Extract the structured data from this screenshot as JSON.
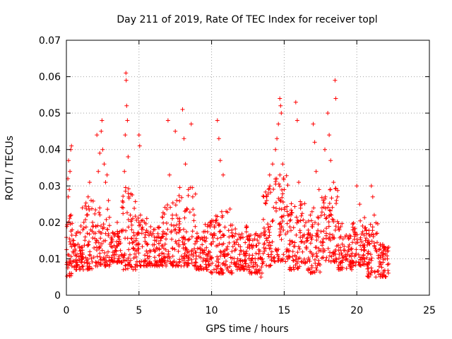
{
  "chart_data": {
    "type": "scatter",
    "title": "Day 211 of 2019, Rate Of TEC Index for receiver topl",
    "xlabel": "GPS time / hours",
    "ylabel": "ROTI / TECUs",
    "xlim": [
      0,
      25
    ],
    "ylim": [
      0,
      0.07
    ],
    "x_ticks": [
      "0",
      "5",
      "10",
      "15",
      "20",
      "25"
    ],
    "y_ticks": [
      "0",
      "0.01",
      "0.02",
      "0.03",
      "0.04",
      "0.05",
      "0.06",
      "0.07"
    ],
    "grid": true,
    "marker": "plus",
    "colors": {
      "points": "#ff0000",
      "grid": "#a0a0a0",
      "axes": "#000000"
    },
    "series": [
      {
        "points": [
          [
            0.05,
            0.009
          ],
          [
            0.1,
            0.032
          ],
          [
            0.12,
            0.027
          ],
          [
            0.15,
            0.037
          ],
          [
            0.18,
            0.011
          ],
          [
            0.2,
            0.029
          ],
          [
            0.22,
            0.006
          ],
          [
            0.25,
            0.034
          ],
          [
            0.28,
            0.014
          ],
          [
            0.3,
            0.04
          ],
          [
            0.32,
            0.022
          ],
          [
            0.35,
            0.041
          ],
          [
            0.38,
            0.008
          ],
          [
            0.4,
            0.018
          ],
          [
            0.45,
            0.012
          ],
          [
            0.5,
            0.015
          ],
          [
            0.6,
            0.011
          ],
          [
            0.7,
            0.009
          ],
          [
            0.8,
            0.014
          ],
          [
            0.9,
            0.013
          ],
          [
            1.0,
            0.019
          ],
          [
            1.1,
            0.024
          ],
          [
            1.15,
            0.008
          ],
          [
            1.2,
            0.02
          ],
          [
            1.3,
            0.016
          ],
          [
            1.4,
            0.022
          ],
          [
            1.5,
            0.027
          ],
          [
            1.6,
            0.031
          ],
          [
            1.7,
            0.026
          ],
          [
            1.8,
            0.02
          ],
          [
            1.9,
            0.013
          ],
          [
            2.0,
            0.017
          ],
          [
            2.1,
            0.044
          ],
          [
            2.2,
            0.034
          ],
          [
            2.3,
            0.039
          ],
          [
            2.4,
            0.045
          ],
          [
            2.45,
            0.048
          ],
          [
            2.5,
            0.04
          ],
          [
            2.6,
            0.036
          ],
          [
            2.7,
            0.031
          ],
          [
            2.8,
            0.033
          ],
          [
            2.9,
            0.026
          ],
          [
            3.0,
            0.014
          ],
          [
            3.2,
            0.011
          ],
          [
            3.4,
            0.013
          ],
          [
            3.5,
            0.02
          ],
          [
            3.6,
            0.016
          ],
          [
            3.8,
            0.011
          ],
          [
            3.9,
            0.024
          ],
          [
            4.0,
            0.034
          ],
          [
            4.05,
            0.044
          ],
          [
            4.1,
            0.061
          ],
          [
            4.12,
            0.059
          ],
          [
            4.15,
            0.052
          ],
          [
            4.2,
            0.048
          ],
          [
            4.25,
            0.038
          ],
          [
            4.3,
            0.027
          ],
          [
            4.4,
            0.022
          ],
          [
            4.5,
            0.018
          ],
          [
            4.6,
            0.013
          ],
          [
            4.8,
            0.015
          ],
          [
            5.0,
            0.044
          ],
          [
            5.05,
            0.041
          ],
          [
            5.1,
            0.022
          ],
          [
            5.2,
            0.017
          ],
          [
            5.4,
            0.011
          ],
          [
            5.6,
            0.014
          ],
          [
            5.8,
            0.012
          ],
          [
            6.0,
            0.018
          ],
          [
            6.2,
            0.013
          ],
          [
            6.4,
            0.011
          ],
          [
            6.6,
            0.016
          ],
          [
            6.8,
            0.014
          ],
          [
            7.0,
            0.048
          ],
          [
            7.1,
            0.033
          ],
          [
            7.3,
            0.022
          ],
          [
            7.5,
            0.045
          ],
          [
            7.6,
            0.026
          ],
          [
            7.8,
            0.021
          ],
          [
            8.0,
            0.051
          ],
          [
            8.1,
            0.043
          ],
          [
            8.2,
            0.036
          ],
          [
            8.4,
            0.029
          ],
          [
            8.6,
            0.047
          ],
          [
            8.7,
            0.027
          ],
          [
            8.8,
            0.022
          ],
          [
            9.0,
            0.017
          ],
          [
            9.2,
            0.013
          ],
          [
            9.5,
            0.015
          ],
          [
            9.8,
            0.012
          ],
          [
            10.0,
            0.014
          ],
          [
            10.2,
            0.019
          ],
          [
            10.4,
            0.048
          ],
          [
            10.5,
            0.043
          ],
          [
            10.6,
            0.037
          ],
          [
            10.8,
            0.033
          ],
          [
            11.0,
            0.023
          ],
          [
            11.2,
            0.016
          ],
          [
            11.4,
            0.012
          ],
          [
            11.6,
            0.014
          ],
          [
            11.8,
            0.01
          ],
          [
            12.0,
            0.016
          ],
          [
            12.2,
            0.012
          ],
          [
            12.4,
            0.019
          ],
          [
            12.6,
            0.011
          ],
          [
            12.8,
            0.013
          ],
          [
            13.0,
            0.009
          ],
          [
            13.2,
            0.01
          ],
          [
            13.4,
            0.005
          ],
          [
            13.6,
            0.013
          ],
          [
            13.8,
            0.026
          ],
          [
            14.0,
            0.033
          ],
          [
            14.2,
            0.036
          ],
          [
            14.4,
            0.04
          ],
          [
            14.5,
            0.043
          ],
          [
            14.6,
            0.047
          ],
          [
            14.7,
            0.054
          ],
          [
            14.75,
            0.052
          ],
          [
            14.8,
            0.05
          ],
          [
            14.9,
            0.036
          ],
          [
            15.0,
            0.029
          ],
          [
            15.2,
            0.023
          ],
          [
            15.4,
            0.014
          ],
          [
            15.6,
            0.012
          ],
          [
            15.8,
            0.053
          ],
          [
            15.9,
            0.048
          ],
          [
            16.0,
            0.031
          ],
          [
            16.2,
            0.025
          ],
          [
            16.4,
            0.019
          ],
          [
            16.6,
            0.015
          ],
          [
            16.8,
            0.022
          ],
          [
            17.0,
            0.047
          ],
          [
            17.1,
            0.042
          ],
          [
            17.2,
            0.034
          ],
          [
            17.4,
            0.029
          ],
          [
            17.6,
            0.024
          ],
          [
            17.8,
            0.04
          ],
          [
            18.0,
            0.05
          ],
          [
            18.1,
            0.044
          ],
          [
            18.2,
            0.037
          ],
          [
            18.4,
            0.031
          ],
          [
            18.5,
            0.059
          ],
          [
            18.55,
            0.054
          ],
          [
            18.6,
            0.026
          ],
          [
            18.8,
            0.018
          ],
          [
            19.0,
            0.014
          ],
          [
            19.2,
            0.016
          ],
          [
            19.4,
            0.012
          ],
          [
            19.6,
            0.011
          ],
          [
            19.8,
            0.018
          ],
          [
            20.0,
            0.03
          ],
          [
            20.2,
            0.025
          ],
          [
            20.4,
            0.019
          ],
          [
            20.6,
            0.015
          ],
          [
            20.8,
            0.012
          ],
          [
            21.0,
            0.03
          ],
          [
            21.1,
            0.027
          ],
          [
            21.2,
            0.022
          ],
          [
            21.4,
            0.017
          ],
          [
            21.6,
            0.011
          ],
          [
            21.8,
            0.009
          ],
          [
            22.0,
            0.013
          ]
        ],
        "bands": [
          [
            0.0,
            0.5,
            0.005,
            0.022
          ],
          [
            0.5,
            1.0,
            0.007,
            0.018
          ],
          [
            1.0,
            2.0,
            0.007,
            0.026
          ],
          [
            2.0,
            3.0,
            0.008,
            0.024
          ],
          [
            3.0,
            3.8,
            0.009,
            0.018
          ],
          [
            3.8,
            4.8,
            0.007,
            0.03
          ],
          [
            4.8,
            5.6,
            0.008,
            0.022
          ],
          [
            5.6,
            6.6,
            0.008,
            0.02
          ],
          [
            6.6,
            7.6,
            0.008,
            0.026
          ],
          [
            7.6,
            8.9,
            0.008,
            0.03
          ],
          [
            8.9,
            9.8,
            0.007,
            0.02
          ],
          [
            9.8,
            10.6,
            0.006,
            0.022
          ],
          [
            10.6,
            11.6,
            0.006,
            0.024
          ],
          [
            11.6,
            12.6,
            0.007,
            0.019
          ],
          [
            12.6,
            13.5,
            0.006,
            0.017
          ],
          [
            13.5,
            14.3,
            0.008,
            0.03
          ],
          [
            14.3,
            15.3,
            0.009,
            0.034
          ],
          [
            15.3,
            16.5,
            0.007,
            0.026
          ],
          [
            16.5,
            17.5,
            0.006,
            0.024
          ],
          [
            17.5,
            18.7,
            0.009,
            0.03
          ],
          [
            18.7,
            19.7,
            0.007,
            0.02
          ],
          [
            19.7,
            20.7,
            0.008,
            0.022
          ],
          [
            20.7,
            21.5,
            0.005,
            0.02
          ],
          [
            21.5,
            22.2,
            0.005,
            0.014
          ]
        ]
      }
    ]
  }
}
